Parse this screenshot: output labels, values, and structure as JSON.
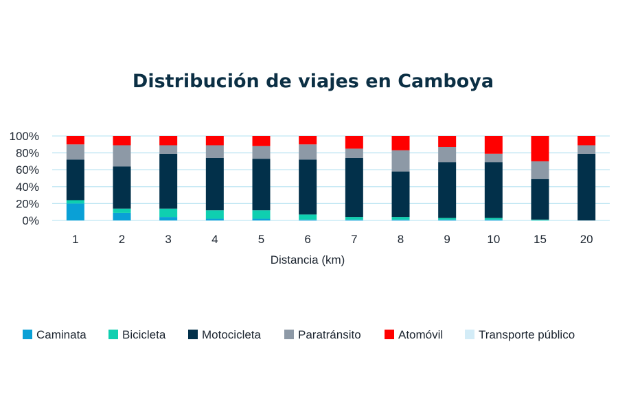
{
  "chart_data": {
    "type": "bar",
    "stacked": true,
    "title": "Distribución de viajes en Camboya",
    "xlabel": "Distancia (km)",
    "ylabel": "",
    "categories": [
      "1",
      "2",
      "3",
      "4",
      "5",
      "6",
      "7",
      "8",
      "9",
      "10",
      "15",
      "20"
    ],
    "yticks": [
      "0%",
      "20%",
      "40%",
      "60%",
      "80%",
      "100%"
    ],
    "ylim": [
      0,
      100
    ],
    "grid": true,
    "legend_position": "bottom",
    "series": [
      {
        "name": "Caminata",
        "color": "#0aa0d6",
        "values": [
          20,
          9,
          4,
          2,
          2,
          1,
          1,
          1,
          1,
          1,
          0,
          0
        ]
      },
      {
        "name": "Bicicleta",
        "color": "#0fcfb0",
        "values": [
          4,
          5,
          10,
          10,
          10,
          6,
          3,
          3,
          2,
          2,
          1,
          0
        ]
      },
      {
        "name": "Motocicleta",
        "color": "#02304a",
        "values": [
          48,
          50,
          65,
          62,
          61,
          65,
          70,
          54,
          66,
          66,
          48,
          79
        ]
      },
      {
        "name": "Paratránsito",
        "color": "#8d99a6",
        "values": [
          18,
          25,
          10,
          15,
          15,
          18,
          11,
          25,
          18,
          10,
          21,
          10
        ]
      },
      {
        "name": "Atomóvil",
        "color": "#ff0000",
        "values": [
          10,
          11,
          11,
          11,
          12,
          10,
          15,
          17,
          13,
          21,
          30,
          11
        ]
      },
      {
        "name": "Transporte público",
        "color": "#d3ecf7",
        "values": [
          0,
          0,
          0,
          0,
          0,
          0,
          0,
          0,
          0,
          0,
          0,
          0
        ]
      }
    ]
  }
}
